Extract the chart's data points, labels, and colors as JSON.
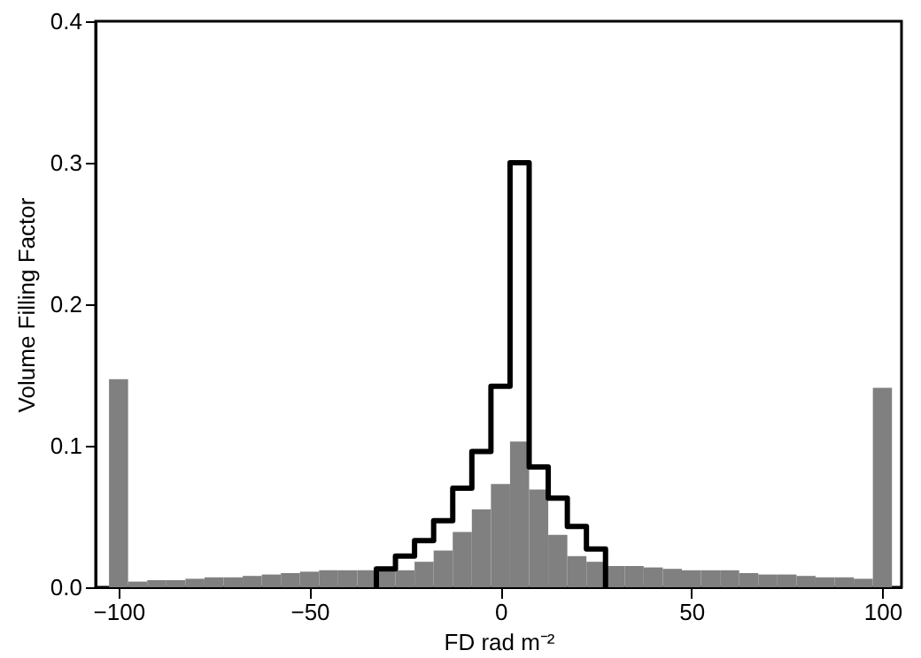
{
  "chart_data": {
    "type": "histogram",
    "xlabel": "FD rad m⁻²",
    "ylabel": "Volume Filling Factor",
    "bins": [
      -102.5,
      -97.5,
      -92.5,
      -87.5,
      -82.5,
      -77.5,
      -72.5,
      -67.5,
      -62.5,
      -57.5,
      -52.5,
      -47.5,
      -42.5,
      -37.5,
      -32.5,
      -27.5,
      -22.5,
      -17.5,
      -12.5,
      -7.5,
      -2.5,
      2.5,
      7.5,
      12.5,
      17.5,
      22.5,
      27.5,
      32.5,
      37.5,
      42.5,
      47.5,
      52.5,
      57.5,
      62.5,
      67.5,
      72.5,
      77.5,
      82.5,
      87.5,
      92.5,
      97.5,
      102.5
    ],
    "series": [
      {
        "color": "#808080",
        "values": [
          0.147,
          0.004,
          0.005,
          0.005,
          0.006,
          0.007,
          0.007,
          0.008,
          0.009,
          0.01,
          0.011,
          0.012,
          0.012,
          0.012,
          0.012,
          0.012,
          0.018,
          0.026,
          0.039,
          0.055,
          0.073,
          0.103,
          0.069,
          0.037,
          0.022,
          0.018,
          0.015,
          0.015,
          0.014,
          0.013,
          0.012,
          0.012,
          0.012,
          0.01,
          0.009,
          0.009,
          0.008,
          0.007,
          0.007,
          0.006,
          0.141
        ]
      },
      {
        "line_style": "solid",
        "color": "#000000",
        "bins": [
          -32.5,
          -27.5,
          -22.5,
          -17.5,
          -12.5,
          -7.5,
          -2.5,
          2.5,
          7.5,
          12.5,
          17.5,
          22.5,
          27.5
        ],
        "values": [
          0.013,
          0.022,
          0.033,
          0.047,
          0.07,
          0.096,
          0.142,
          0.3,
          0.085,
          0.063,
          0.043,
          0.027
        ]
      }
    ],
    "xlim": [
      -106,
      105
    ],
    "xticks": [
      -100,
      -50,
      0,
      50,
      100
    ],
    "ylim": [
      0,
      0.4
    ],
    "yticks": [
      {
        "value": 0,
        "label": "0.0"
      },
      {
        "value": 0.1,
        "label": "0.1"
      },
      {
        "value": 0.2,
        "label": "0.2"
      },
      {
        "value": 0.3,
        "label": "0.3"
      },
      {
        "value": 0.4,
        "label": "0.4"
      }
    ],
    "grid": false
  }
}
